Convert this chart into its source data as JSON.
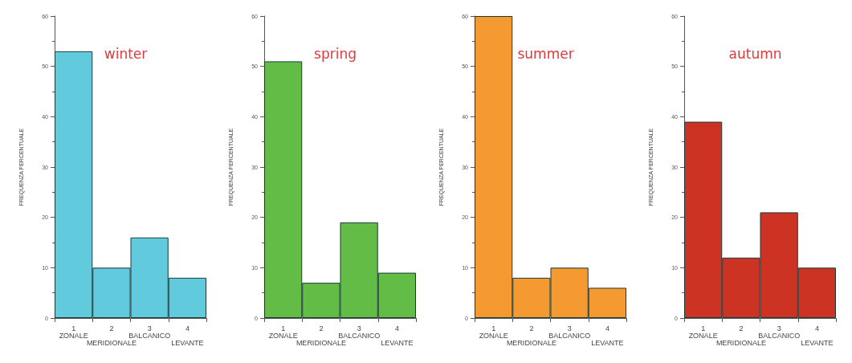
{
  "chart_data": [
    {
      "type": "bar",
      "title": "winter",
      "ylabel": "FREQUENZA PERCENTUALE",
      "categories": [
        "1\nZONALE",
        "2\nMERIDIONALE",
        "3\nBALCANICO",
        "4\nLEVANTE"
      ],
      "values": [
        53,
        10,
        16,
        8
      ],
      "color": "#62cadd",
      "ylim": [
        0,
        60
      ],
      "yticks": [
        0,
        10,
        20,
        30,
        40,
        50,
        60
      ],
      "grid": false
    },
    {
      "type": "bar",
      "title": "spring",
      "ylabel": "FREQUENZA PERCENTUALE",
      "categories": [
        "1\nZONALE",
        "2\nMERIDIONALE",
        "3\nBALCANICO",
        "4\nLEVANTE"
      ],
      "values": [
        51,
        7,
        19,
        9
      ],
      "color": "#62bc45",
      "ylim": [
        0,
        60
      ],
      "yticks": [
        0,
        10,
        20,
        30,
        40,
        50,
        60
      ],
      "grid": false
    },
    {
      "type": "bar",
      "title": "summer",
      "ylabel": "FREQUENZA PERCENTUALE",
      "categories": [
        "1\nZONALE",
        "2\nMERIDIONALE",
        "3\nBALCANICO",
        "4\nLEVANTE"
      ],
      "values": [
        60,
        8,
        10,
        6
      ],
      "color": "#f49a30",
      "ylim": [
        0,
        60
      ],
      "yticks": [
        0,
        10,
        20,
        30,
        40,
        50,
        60
      ],
      "grid": false
    },
    {
      "type": "bar",
      "title": "autumn",
      "ylabel": "FREQUENZA PERCENTUALE",
      "categories": [
        "1\nZONALE",
        "2\nMERIDIONALE",
        "3\nBALCANICO",
        "4\nLEVANTE"
      ],
      "values": [
        39,
        12,
        21,
        10
      ],
      "color": "#cc3323",
      "ylim": [
        0,
        60
      ],
      "yticks": [
        0,
        10,
        20,
        30,
        40,
        50,
        60
      ],
      "grid": false
    }
  ]
}
